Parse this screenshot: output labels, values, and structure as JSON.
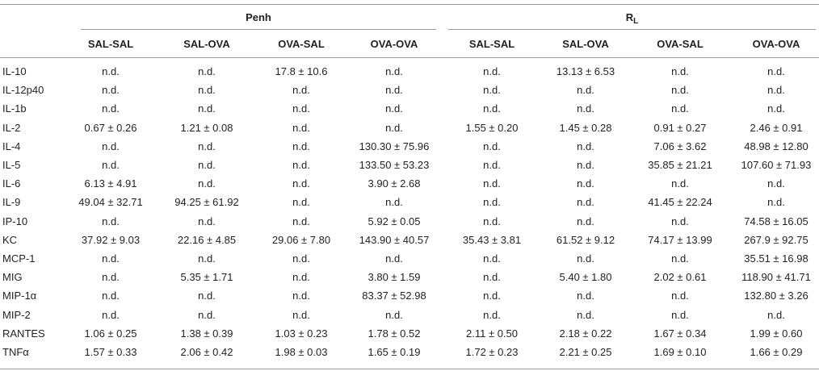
{
  "groups": {
    "penh": "Penh",
    "rl_main": "R",
    "rl_sub": "L"
  },
  "columns": [
    "SAL-SAL",
    "SAL-OVA",
    "OVA-SAL",
    "OVA-OVA",
    "SAL-SAL",
    "SAL-OVA",
    "OVA-SAL",
    "OVA-OVA"
  ],
  "rows": [
    {
      "label": "IL-10",
      "values": [
        "n.d.",
        "n.d.",
        "17.8 ± 10.6",
        "n.d.",
        "n.d.",
        "13.13 ± 6.53",
        "n.d.",
        "n.d."
      ]
    },
    {
      "label": "IL-12p40",
      "values": [
        "n.d.",
        "n.d.",
        "n.d.",
        "n.d.",
        "n.d.",
        "n.d.",
        "n.d.",
        "n.d."
      ]
    },
    {
      "label": "IL-1b",
      "values": [
        "n.d.",
        "n.d.",
        "n.d.",
        "n.d.",
        "n.d.",
        "n.d.",
        "n.d.",
        "n.d."
      ]
    },
    {
      "label": "IL-2",
      "values": [
        "0.67 ± 0.26",
        "1.21 ± 0.08",
        "n.d.",
        "n.d.",
        "1.55 ± 0.20",
        "1.45 ± 0.28",
        "0.91 ± 0.27",
        "2.46 ± 0.91"
      ]
    },
    {
      "label": "IL-4",
      "values": [
        "n.d.",
        "n.d.",
        "n.d.",
        "130.30 ± 75.96",
        "n.d.",
        "n.d.",
        "7.06 ± 3.62",
        "48.98 ± 12.80"
      ]
    },
    {
      "label": "IL-5",
      "values": [
        "n.d.",
        "n.d.",
        "n.d.",
        "133.50 ± 53.23",
        "n.d.",
        "n.d.",
        "35.85 ± 21.21",
        "107.60 ± 71.93"
      ]
    },
    {
      "label": "IL-6",
      "values": [
        "6.13 ± 4.91",
        "n.d.",
        "n.d.",
        "3.90 ± 2.68",
        "n.d.",
        "n.d.",
        "n.d.",
        "n.d."
      ]
    },
    {
      "label": "IL-9",
      "values": [
        "49.04 ± 32.71",
        "94.25 ± 61.92",
        "n.d.",
        "n.d.",
        "n.d.",
        "n.d.",
        "41.45 ± 22.24",
        "n.d."
      ]
    },
    {
      "label": "IP-10",
      "values": [
        "n.d.",
        "n.d.",
        "n.d.",
        "5.92 ± 0.05",
        "n.d.",
        "n.d.",
        "n.d.",
        "74.58 ± 16.05"
      ]
    },
    {
      "label": "KC",
      "values": [
        "37.92 ± 9.03",
        "22.16 ± 4.85",
        "29.06 ± 7.80",
        "143.90 ± 40.57",
        "35.43 ± 3.81",
        "61.52 ± 9.12",
        "74.17 ± 13.99",
        "267.9 ± 92.75"
      ]
    },
    {
      "label": "MCP-1",
      "values": [
        "n.d.",
        "n.d.",
        "n.d.",
        "n.d.",
        "n.d.",
        "n.d.",
        "n.d.",
        "35.51 ± 16.98"
      ]
    },
    {
      "label": "MIG",
      "values": [
        "n.d.",
        "5.35 ± 1.71",
        "n.d.",
        "3.80 ± 1.59",
        "n.d.",
        "5.40 ± 1.80",
        "2.02 ± 0.61",
        "118.90 ± 41.71"
      ]
    },
    {
      "label": "MIP-1α",
      "values": [
        "n.d.",
        "n.d.",
        "n.d.",
        "83.37 ± 52.98",
        "n.d.",
        "n.d.",
        "n.d.",
        "132.80 ± 3.26"
      ]
    },
    {
      "label": "MIP-2",
      "values": [
        "n.d.",
        "n.d.",
        "n.d.",
        "n.d.",
        "n.d.",
        "n.d.",
        "n.d.",
        "n.d."
      ]
    },
    {
      "label": "RANTES",
      "values": [
        "1.06 ± 0.25",
        "1.38 ± 0.39",
        "1.03 ± 0.23",
        "1.78 ± 0.52",
        "2.11 ± 0.50",
        "2.18 ± 0.22",
        "1.67 ± 0.34",
        "1.99 ± 0.60"
      ]
    },
    {
      "label": "TNFα",
      "values": [
        "1.57 ± 0.33",
        "2.06 ± 0.42",
        "1.98 ± 0.03",
        "1.65 ± 0.19",
        "1.72 ± 0.23",
        "2.21 ± 0.25",
        "1.69 ± 0.10",
        "1.66 ± 0.29"
      ]
    }
  ]
}
